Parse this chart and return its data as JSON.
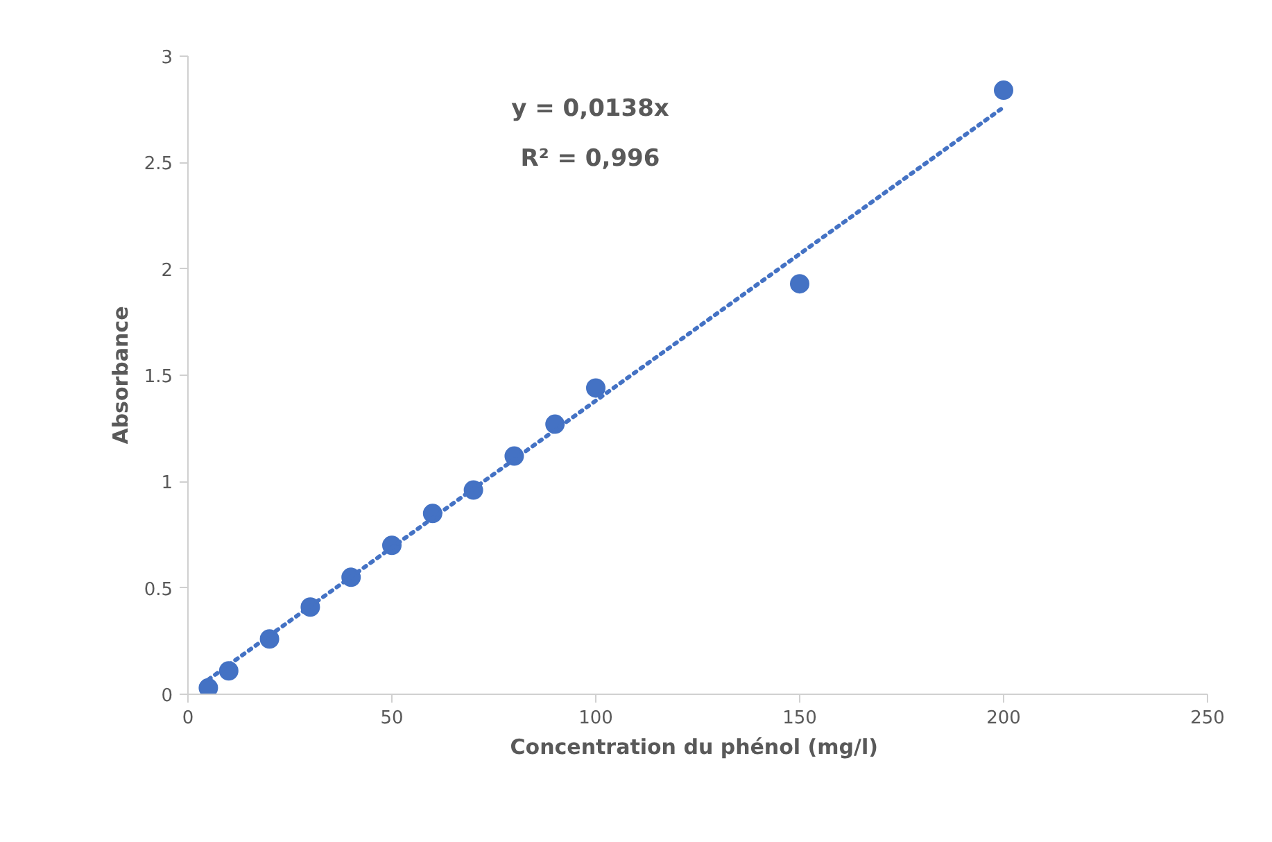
{
  "chart_data": {
    "type": "scatter",
    "xlabel": "Concentration  du phénol (mg/l)",
    "ylabel": "Absorbance",
    "annotations": [
      "y = 0,0138x",
      "R² = 0,996"
    ],
    "xlim": [
      0,
      250
    ],
    "xticks": [
      0,
      50,
      100,
      150,
      200,
      250
    ],
    "ylim": [
      0,
      3
    ],
    "yticks": [
      0,
      0.5,
      1,
      1.5,
      2,
      2.5,
      3
    ],
    "grid": false,
    "marker": "circle",
    "series": [
      {
        "color": "#4472c4",
        "x": [
          5,
          10,
          20,
          30,
          40,
          50,
          60,
          70,
          80,
          90,
          100,
          150,
          200
        ],
        "values": [
          0.03,
          0.11,
          0.26,
          0.41,
          0.55,
          0.7,
          0.85,
          0.96,
          1.12,
          1.27,
          1.44,
          1.93,
          2.84
        ]
      },
      {
        "type": "line",
        "color": "#4472c4",
        "line_style": "dotted",
        "marker": "none",
        "x": [
          5,
          200
        ],
        "values": [
          0.069,
          2.76
        ]
      }
    ]
  }
}
